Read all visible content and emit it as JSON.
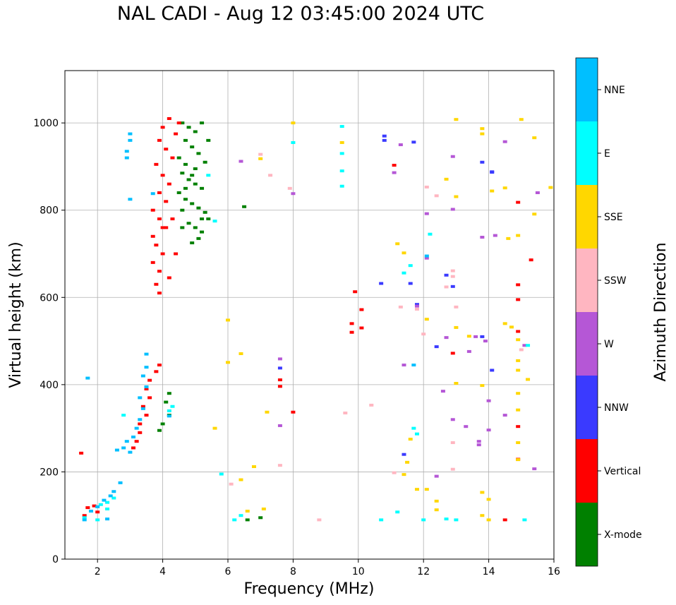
{
  "chart_data": {
    "type": "scatter",
    "title": "NAL CADI - Aug 12 03:45:00 2024 UTC",
    "xlabel": "Frequency (MHz)",
    "ylabel": "Virtual height (km)",
    "xlim": [
      1,
      16
    ],
    "ylim": [
      0,
      1120
    ],
    "xticks": [
      2,
      4,
      6,
      8,
      10,
      12,
      14,
      16
    ],
    "yticks": [
      0,
      200,
      400,
      600,
      800,
      1000
    ],
    "grid": true,
    "colorbar": {
      "label": "Azimuth Direction",
      "categories": [
        {
          "name": "X-mode",
          "color": "#008000"
        },
        {
          "name": "Vertical",
          "color": "#ff0000"
        },
        {
          "name": "NNW",
          "color": "#3a3aff"
        },
        {
          "name": "W",
          "color": "#b557d6"
        },
        {
          "name": "SSW",
          "color": "#ffb6c1"
        },
        {
          "name": "SSE",
          "color": "#ffd700"
        },
        {
          "name": "E",
          "color": "#00ffff"
        },
        {
          "name": "NNE",
          "color": "#00bfff"
        }
      ]
    },
    "series": [
      {
        "name": "X-mode",
        "points": [
          [
            4.6,
            1000
          ],
          [
            4.8,
            990
          ],
          [
            5.0,
            980
          ],
          [
            4.7,
            960
          ],
          [
            4.9,
            945
          ],
          [
            5.1,
            930
          ],
          [
            4.5,
            920
          ],
          [
            4.7,
            905
          ],
          [
            5.0,
            895
          ],
          [
            5.3,
            910
          ],
          [
            4.6,
            885
          ],
          [
            4.8,
            870
          ],
          [
            5.0,
            860
          ],
          [
            5.2,
            850
          ],
          [
            4.5,
            840
          ],
          [
            4.7,
            825
          ],
          [
            4.9,
            815
          ],
          [
            5.1,
            805
          ],
          [
            5.3,
            795
          ],
          [
            5.4,
            780
          ],
          [
            4.8,
            770
          ],
          [
            5.0,
            760
          ],
          [
            5.2,
            750
          ],
          [
            5.1,
            735
          ],
          [
            4.9,
            725
          ],
          [
            4.6,
            800
          ],
          [
            4.7,
            850
          ],
          [
            4.9,
            880
          ],
          [
            5.4,
            960
          ],
          [
            5.2,
            1000
          ],
          [
            6.5,
            808
          ],
          [
            4.2,
            380
          ],
          [
            4.1,
            360
          ],
          [
            4.0,
            310
          ],
          [
            3.9,
            295
          ],
          [
            4.2,
            330
          ],
          [
            6.6,
            90
          ],
          [
            7.0,
            95
          ],
          [
            5.2,
            780
          ],
          [
            4.6,
            760
          ]
        ]
      },
      {
        "name": "Vertical",
        "points": [
          [
            4.2,
            1010
          ],
          [
            4.0,
            990
          ],
          [
            4.4,
            975
          ],
          [
            3.9,
            960
          ],
          [
            4.1,
            940
          ],
          [
            4.3,
            920
          ],
          [
            3.8,
            905
          ],
          [
            4.0,
            880
          ],
          [
            4.2,
            860
          ],
          [
            3.9,
            840
          ],
          [
            4.1,
            820
          ],
          [
            3.7,
            800
          ],
          [
            3.9,
            780
          ],
          [
            4.1,
            760
          ],
          [
            3.7,
            740
          ],
          [
            3.8,
            720
          ],
          [
            4.0,
            700
          ],
          [
            3.7,
            680
          ],
          [
            3.9,
            660
          ],
          [
            4.2,
            645
          ],
          [
            3.8,
            630
          ],
          [
            3.9,
            610
          ],
          [
            4.3,
            780
          ],
          [
            4.4,
            700
          ],
          [
            3.9,
            445
          ],
          [
            3.8,
            430
          ],
          [
            3.6,
            410
          ],
          [
            3.5,
            390
          ],
          [
            3.6,
            370
          ],
          [
            3.4,
            350
          ],
          [
            3.5,
            330
          ],
          [
            3.3,
            310
          ],
          [
            3.3,
            290
          ],
          [
            3.2,
            270
          ],
          [
            3.1,
            255
          ],
          [
            1.5,
            243
          ],
          [
            1.7,
            118
          ],
          [
            1.9,
            122
          ],
          [
            2.0,
            108
          ],
          [
            1.6,
            100
          ],
          [
            9.9,
            613
          ],
          [
            10.1,
            572
          ],
          [
            9.8,
            540
          ],
          [
            10.1,
            530
          ],
          [
            9.8,
            520
          ],
          [
            11.1,
            903
          ],
          [
            8.0,
            337
          ],
          [
            7.6,
            396
          ],
          [
            7.6,
            411
          ],
          [
            14.9,
            818
          ],
          [
            15.3,
            686
          ],
          [
            14.9,
            629
          ],
          [
            14.9,
            595
          ],
          [
            14.9,
            522
          ],
          [
            14.9,
            304
          ],
          [
            14.9,
            229
          ],
          [
            14.5,
            90
          ],
          [
            12.9,
            472
          ],
          [
            4.5,
            1000
          ],
          [
            4.0,
            760
          ]
        ]
      },
      {
        "name": "NNW",
        "points": [
          [
            10.8,
            970
          ],
          [
            10.8,
            960
          ],
          [
            11.7,
            956
          ],
          [
            13.8,
            910
          ],
          [
            14.1,
            888
          ],
          [
            10.7,
            632
          ],
          [
            11.6,
            632
          ],
          [
            11.8,
            584
          ],
          [
            12.9,
            625
          ],
          [
            12.4,
            487
          ],
          [
            13.8,
            510
          ],
          [
            14.1,
            433
          ],
          [
            11.4,
            240
          ],
          [
            7.6,
            438
          ],
          [
            14.1,
            887
          ],
          [
            12.7,
            651
          ]
        ]
      },
      {
        "name": "W",
        "points": [
          [
            11.3,
            950
          ],
          [
            11.1,
            886
          ],
          [
            12.9,
            923
          ],
          [
            14.5,
            957
          ],
          [
            12.9,
            802
          ],
          [
            12.1,
            792
          ],
          [
            13.8,
            738
          ],
          [
            14.2,
            742
          ],
          [
            11.8,
            580
          ],
          [
            12.7,
            508
          ],
          [
            13.4,
            476
          ],
          [
            13.6,
            510
          ],
          [
            13.9,
            500
          ],
          [
            12.6,
            385
          ],
          [
            14.0,
            363
          ],
          [
            14.5,
            330
          ],
          [
            12.9,
            320
          ],
          [
            13.3,
            304
          ],
          [
            14.0,
            296
          ],
          [
            13.7,
            270
          ],
          [
            13.7,
            262
          ],
          [
            15.4,
            207
          ],
          [
            12.4,
            190
          ],
          [
            11.4,
            445
          ],
          [
            8.0,
            838
          ],
          [
            7.6,
            459
          ],
          [
            7.6,
            306
          ],
          [
            15.5,
            840
          ],
          [
            6.4,
            912
          ],
          [
            12.1,
            690
          ],
          [
            15.1,
            490
          ]
        ]
      },
      {
        "name": "SSW",
        "points": [
          [
            12.1,
            853
          ],
          [
            12.4,
            833
          ],
          [
            12.9,
            661
          ],
          [
            12.7,
            624
          ],
          [
            13.0,
            578
          ],
          [
            12.9,
            648
          ],
          [
            11.8,
            573
          ],
          [
            11.3,
            578
          ],
          [
            9.6,
            335
          ],
          [
            10.4,
            353
          ],
          [
            11.1,
            198
          ],
          [
            12.9,
            267
          ],
          [
            12.9,
            206
          ],
          [
            7.6,
            215
          ],
          [
            6.1,
            172
          ],
          [
            8.8,
            90
          ],
          [
            7.0,
            928
          ],
          [
            7.3,
            880
          ],
          [
            7.9,
            850
          ],
          [
            12.0,
            516
          ],
          [
            15.0,
            480
          ]
        ]
      },
      {
        "name": "SSE",
        "points": [
          [
            13.0,
            1008
          ],
          [
            15.0,
            1008
          ],
          [
            15.4,
            966
          ],
          [
            13.8,
            987
          ],
          [
            13.8,
            975
          ],
          [
            14.1,
            844
          ],
          [
            14.5,
            851
          ],
          [
            12.7,
            871
          ],
          [
            13.0,
            831
          ],
          [
            15.4,
            791
          ],
          [
            14.9,
            742
          ],
          [
            14.6,
            735
          ],
          [
            11.2,
            723
          ],
          [
            11.4,
            702
          ],
          [
            12.1,
            550
          ],
          [
            13.0,
            531
          ],
          [
            13.4,
            511
          ],
          [
            14.5,
            540
          ],
          [
            14.7,
            532
          ],
          [
            14.9,
            503
          ],
          [
            14.9,
            455
          ],
          [
            14.9,
            433
          ],
          [
            15.2,
            412
          ],
          [
            13.0,
            403
          ],
          [
            13.8,
            398
          ],
          [
            14.9,
            380
          ],
          [
            14.9,
            342
          ],
          [
            14.9,
            267
          ],
          [
            14.9,
            228
          ],
          [
            11.6,
            275
          ],
          [
            11.5,
            222
          ],
          [
            11.4,
            194
          ],
          [
            11.8,
            160
          ],
          [
            12.1,
            160
          ],
          [
            12.4,
            133
          ],
          [
            12.4,
            113
          ],
          [
            13.8,
            153
          ],
          [
            14.0,
            137
          ],
          [
            13.8,
            100
          ],
          [
            14.0,
            90
          ],
          [
            9.5,
            955
          ],
          [
            8.0,
            1000
          ],
          [
            7.0,
            918
          ],
          [
            6.0,
            548
          ],
          [
            6.0,
            451
          ],
          [
            6.4,
            471
          ],
          [
            5.6,
            300
          ],
          [
            7.2,
            337
          ],
          [
            6.8,
            212
          ],
          [
            6.4,
            182
          ],
          [
            7.1,
            115
          ],
          [
            6.6,
            110
          ],
          [
            15.9,
            852
          ]
        ]
      },
      {
        "name": "E",
        "points": [
          [
            9.5,
            992
          ],
          [
            9.5,
            930
          ],
          [
            9.5,
            890
          ],
          [
            9.5,
            855
          ],
          [
            11.6,
            673
          ],
          [
            11.4,
            656
          ],
          [
            12.2,
            745
          ],
          [
            11.7,
            300
          ],
          [
            11.8,
            287
          ],
          [
            12.0,
            90
          ],
          [
            12.7,
            92
          ],
          [
            13.0,
            90
          ],
          [
            10.7,
            90
          ],
          [
            11.2,
            108
          ],
          [
            15.1,
            90
          ],
          [
            2.3,
            130
          ],
          [
            2.1,
            125
          ],
          [
            2.5,
            140
          ],
          [
            2.3,
            115
          ],
          [
            2.0,
            90
          ],
          [
            1.6,
            95
          ],
          [
            6.2,
            90
          ],
          [
            6.4,
            100
          ],
          [
            2.8,
            330
          ],
          [
            4.3,
            350
          ],
          [
            4.2,
            340
          ],
          [
            5.8,
            195
          ],
          [
            5.6,
            775
          ],
          [
            8.0,
            955
          ],
          [
            5.4,
            880
          ],
          [
            15.2,
            490
          ]
        ]
      },
      {
        "name": "NNE",
        "points": [
          [
            3.0,
            975
          ],
          [
            3.0,
            960
          ],
          [
            2.9,
            935
          ],
          [
            2.9,
            920
          ],
          [
            3.0,
            825
          ],
          [
            3.7,
            838
          ],
          [
            3.5,
            470
          ],
          [
            3.5,
            440
          ],
          [
            3.4,
            420
          ],
          [
            3.5,
            395
          ],
          [
            3.3,
            370
          ],
          [
            3.4,
            345
          ],
          [
            3.3,
            320
          ],
          [
            3.2,
            300
          ],
          [
            3.1,
            280
          ],
          [
            2.9,
            270
          ],
          [
            2.8,
            255
          ],
          [
            3.0,
            245
          ],
          [
            2.6,
            250
          ],
          [
            2.7,
            175
          ],
          [
            2.5,
            155
          ],
          [
            2.4,
            145
          ],
          [
            2.2,
            135
          ],
          [
            2.0,
            120
          ],
          [
            1.8,
            110
          ],
          [
            1.6,
            90
          ],
          [
            2.3,
            92
          ],
          [
            1.7,
            415
          ],
          [
            11.7,
            445
          ],
          [
            12.1,
            695
          ],
          [
            4.2,
            328
          ]
        ]
      }
    ]
  }
}
